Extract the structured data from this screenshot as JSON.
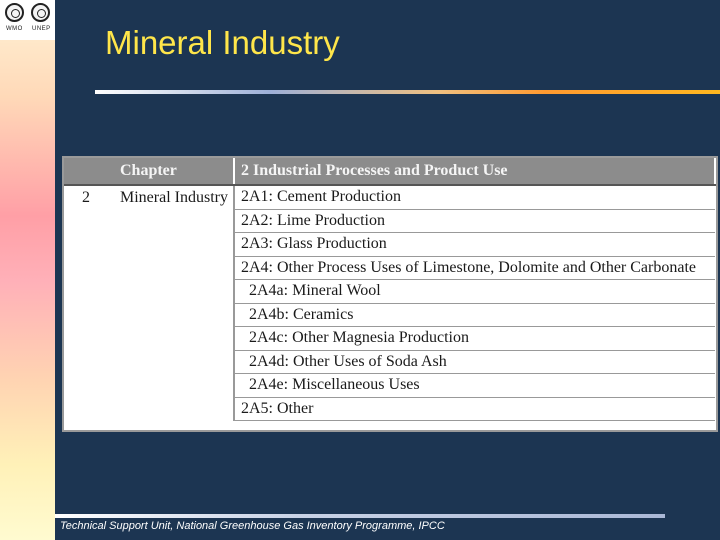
{
  "logos": {
    "left_caption": "WMO",
    "right_caption": "UNEP"
  },
  "slide": {
    "title": "Mineral Industry"
  },
  "table": {
    "headers": {
      "chapter": "Chapter",
      "category": "2 Industrial Processes and Product Use"
    },
    "chapter_number": "2",
    "chapter_name": "Mineral Industry",
    "rows": [
      {
        "text": "2A1: Cement Production",
        "indent": false
      },
      {
        "text": "2A2: Lime Production",
        "indent": false
      },
      {
        "text": "2A3: Glass Production",
        "indent": false
      },
      {
        "text": "2A4: Other Process Uses of Limestone, Dolomite and Other Carbonate",
        "indent": false
      },
      {
        "text": "2A4a: Mineral Wool",
        "indent": true
      },
      {
        "text": "2A4b: Ceramics",
        "indent": true
      },
      {
        "text": "2A4c: Other Magnesia Production",
        "indent": true
      },
      {
        "text": "2A4d: Other Uses of Soda Ash",
        "indent": true
      },
      {
        "text": "2A4e: Miscellaneous Uses",
        "indent": true
      },
      {
        "text": "2A5: Other",
        "indent": false
      }
    ]
  },
  "footer": {
    "text": "Technical Support Unit, National Greenhouse Gas Inventory Programme, IPCC"
  }
}
